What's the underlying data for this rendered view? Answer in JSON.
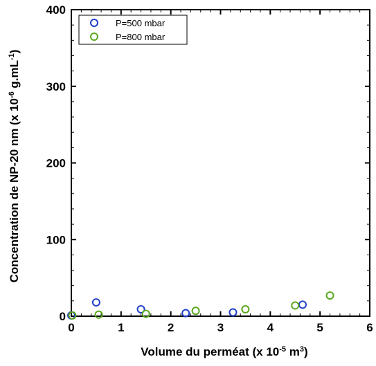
{
  "chart_data": {
    "type": "scatter",
    "xlabel": {
      "prefix": "Volume du perméat (x 10",
      "exp": "-5",
      "mid": " m",
      "exp2": "3",
      "suffix": ")"
    },
    "ylabel": {
      "prefix": "Concentration de NP-20 nm (x 10",
      "exp": "-6",
      "mid": " g.mL",
      "exp2": "-1",
      "suffix": ")"
    },
    "xlim": [
      0,
      6
    ],
    "ylim": [
      0,
      400
    ],
    "xticks": [
      0,
      1,
      2,
      3,
      4,
      5,
      6
    ],
    "yticks": [
      0,
      100,
      200,
      300,
      400
    ],
    "legend_position": "top-left",
    "grid": false,
    "series": [
      {
        "name": "P=500 mbar",
        "color": "#2040c8",
        "x": [
          0.0,
          0.5,
          1.4,
          2.3,
          3.25,
          4.65
        ],
        "y": [
          1,
          18,
          9,
          4,
          5,
          15
        ]
      },
      {
        "name": "P=800 mbar",
        "color": "#5aa820",
        "x": [
          0.02,
          0.55,
          1.5,
          2.5,
          3.5,
          4.5,
          5.2
        ],
        "y": [
          1,
          2,
          3,
          7,
          9,
          14,
          27
        ]
      }
    ]
  }
}
